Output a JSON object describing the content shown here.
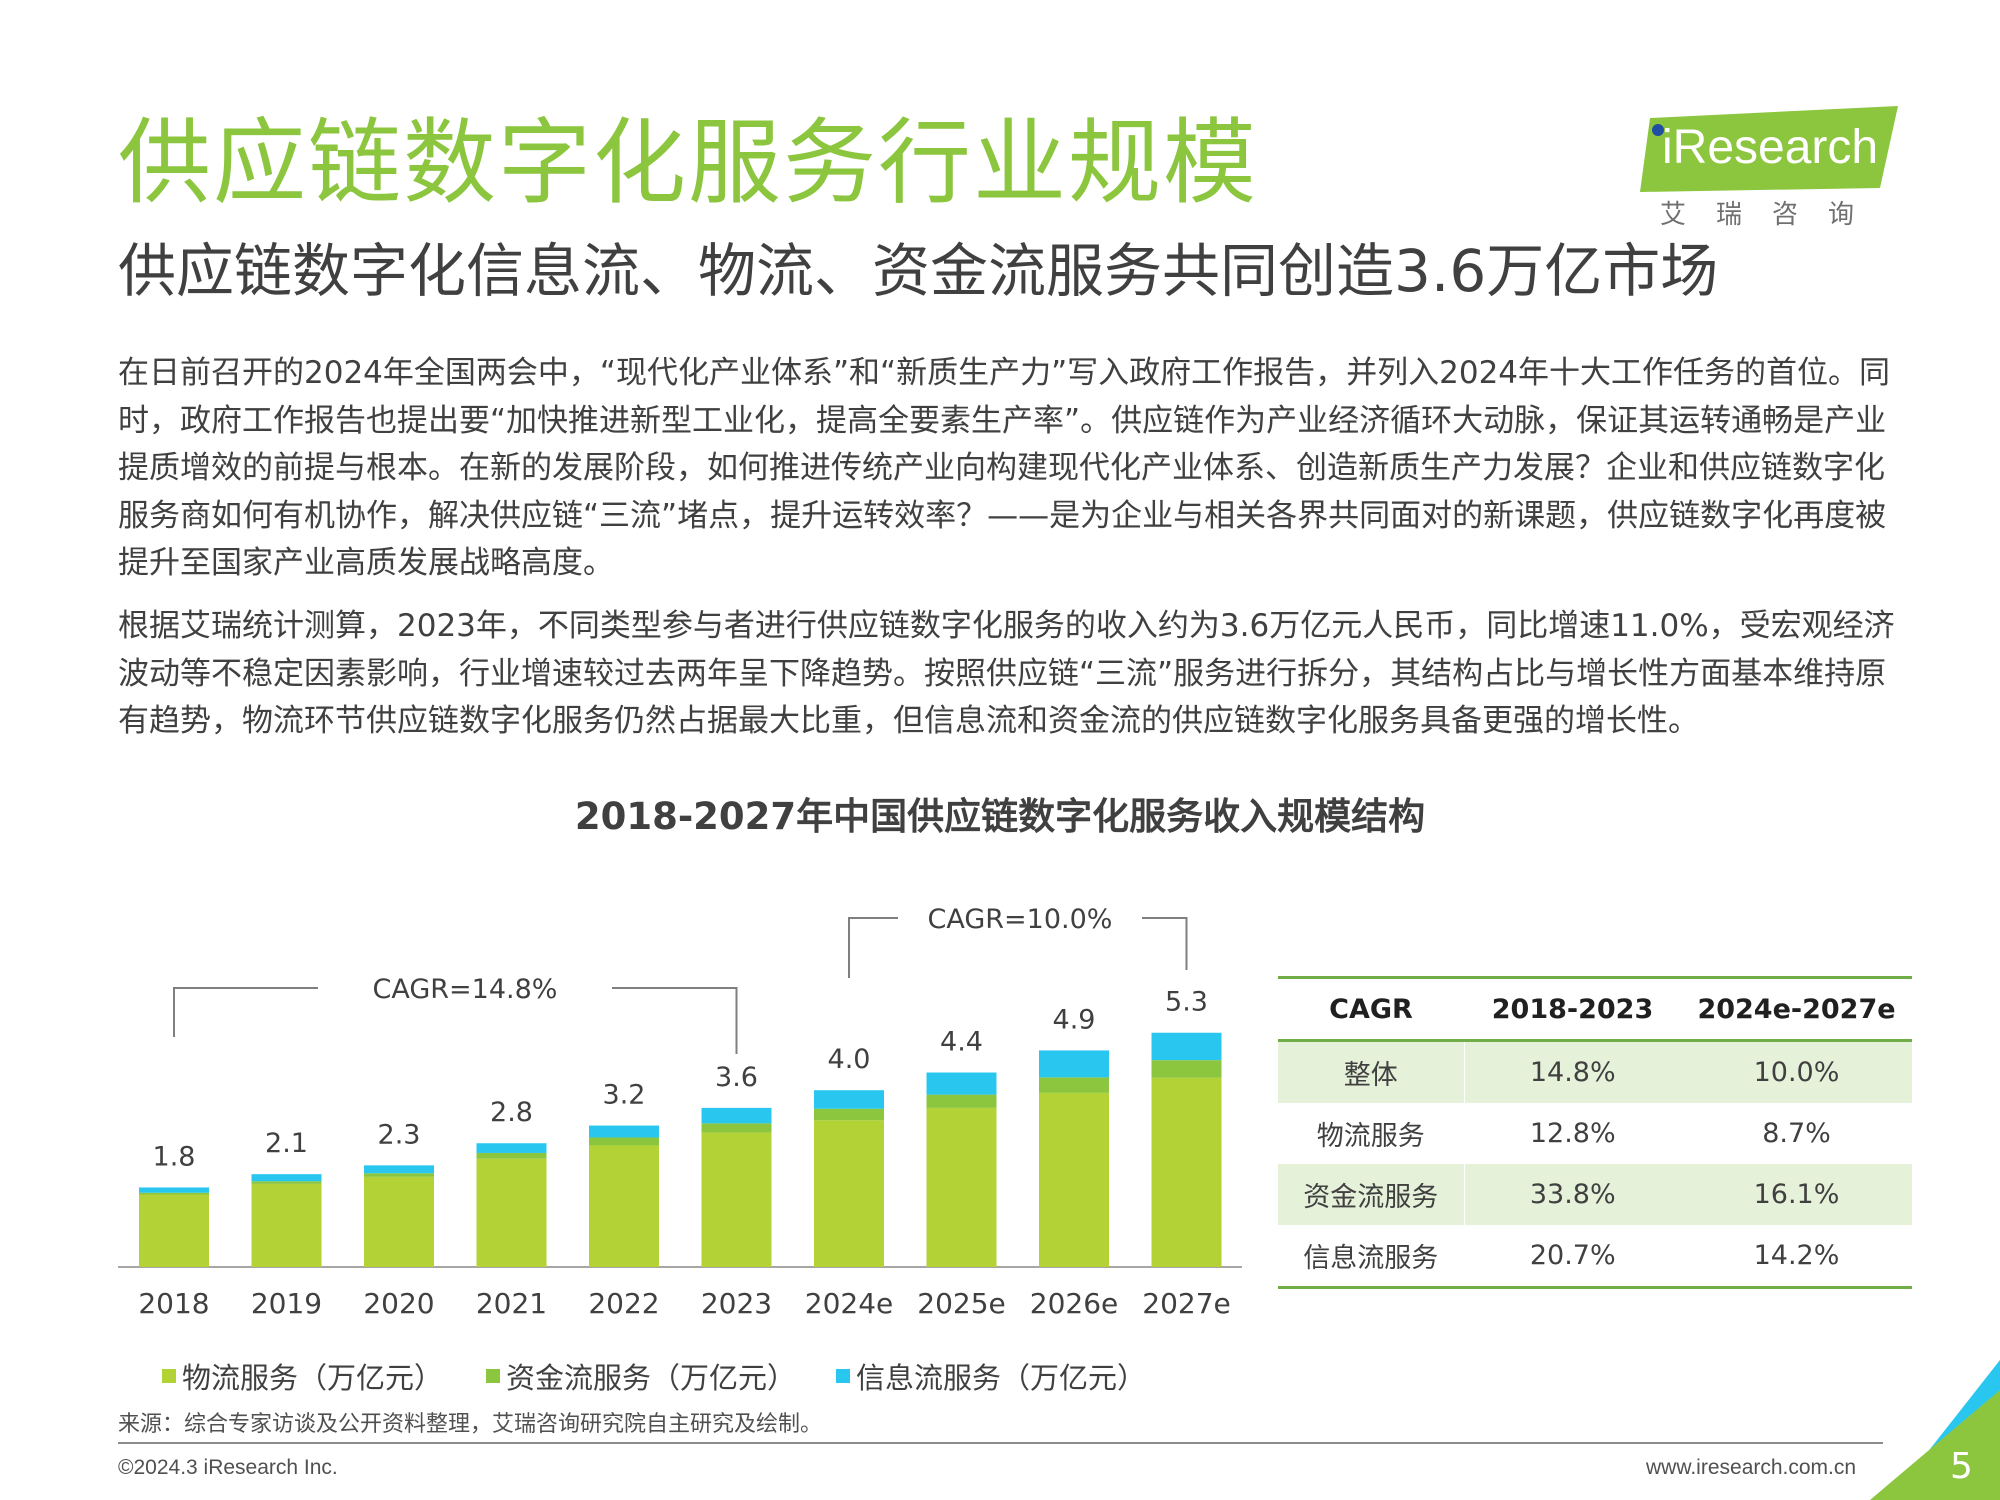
{
  "header": {
    "title": "供应链数字化服务行业规模",
    "subtitle": "供应链数字化信息流、物流、资金流服务共同创造3.6万亿市场",
    "logo_text": "iResearch",
    "logo_sub": "艾瑞咨询"
  },
  "paragraphs": {
    "p1": "在日前召开的2024年全国两会中，“现代化产业体系”和“新质生产力”写入政府工作报告，并列入2024年十大工作任务的首位。同时，政府工作报告也提出要“加快推进新型工业化，提高全要素生产率”。供应链作为产业经济循环大动脉，保证其运转通畅是产业提质增效的前提与根本。在新的发展阶段，如何推进传统产业向构建现代化产业体系、创造新质生产力发展？企业和供应链数字化服务商如何有机协作，解决供应链“三流”堵点，提升运转效率？——是为企业与相关各界共同面对的新课题，供应链数字化再度被提升至国家产业高质发展战略高度。",
    "p2": "根据艾瑞统计测算，2023年，不同类型参与者进行供应链数字化服务的收入约为3.6万亿元人民币，同比增速11.0%，受宏观经济波动等不稳定因素影响，行业增速较过去两年呈下降趋势。按照供应链“三流”服务进行拆分，其结构占比与增长性方面基本维持原有趋势，物流环节供应链数字化服务仍然占据最大比重，但信息流和资金流的供应链数字化服务具备更强的增长性。"
  },
  "chart_data": {
    "type": "bar",
    "stacked": true,
    "title": "2018-2027年中国供应链数字化服务收入规模结构",
    "categories": [
      "2018",
      "2019",
      "2020",
      "2021",
      "2022",
      "2023",
      "2024e",
      "2025e",
      "2026e",
      "2027e"
    ],
    "series": [
      {
        "name": "物流服务（万亿元）",
        "color": "#b2d235",
        "values": [
          1.64,
          1.88,
          2.04,
          2.45,
          2.75,
          3.04,
          3.32,
          3.6,
          3.94,
          4.28
        ]
      },
      {
        "name": "资金流服务（万亿元）",
        "color": "#8cc63f",
        "values": [
          0.04,
          0.06,
          0.08,
          0.13,
          0.18,
          0.21,
          0.26,
          0.3,
          0.35,
          0.4
        ]
      },
      {
        "name": "信息流服务（万亿元）",
        "color": "#29c7ef",
        "values": [
          0.12,
          0.16,
          0.18,
          0.22,
          0.27,
          0.35,
          0.42,
          0.5,
          0.61,
          0.62
        ]
      }
    ],
    "totals": [
      "1.8",
      "2.1",
      "2.3",
      "2.8",
      "3.2",
      "3.6",
      "4.0",
      "4.4",
      "4.9",
      "5.3"
    ],
    "ylim": [
      0,
      6
    ],
    "annotations": [
      {
        "text": "CAGR=14.8%",
        "from": "2018",
        "to": "2023"
      },
      {
        "text": "CAGR=10.0%",
        "from": "2024e",
        "to": "2027e"
      }
    ],
    "legend_position": "bottom",
    "grid": false
  },
  "table": {
    "headers": [
      "CAGR",
      "2018-2023",
      "2024e-2027e"
    ],
    "rows": [
      [
        "整体",
        "14.8%",
        "10.0%"
      ],
      [
        "物流服务",
        "12.8%",
        "8.7%"
      ],
      [
        "资金流服务",
        "33.8%",
        "16.1%"
      ],
      [
        "信息流服务",
        "20.7%",
        "14.2%"
      ]
    ]
  },
  "footer": {
    "source": "来源：综合专家访谈及公开资料整理，艾瑞咨询研究院自主研究及绘制。",
    "copyright": "©2024.3 iResearch Inc.",
    "website": "www.iresearch.com.cn",
    "page": "5"
  },
  "colors": {
    "brand_green": "#8cc63f",
    "logistics": "#b2d235",
    "finance": "#8cc63f",
    "info": "#29c7ef",
    "table_shade": "#e6f1da",
    "table_rule": "#70ad47"
  }
}
